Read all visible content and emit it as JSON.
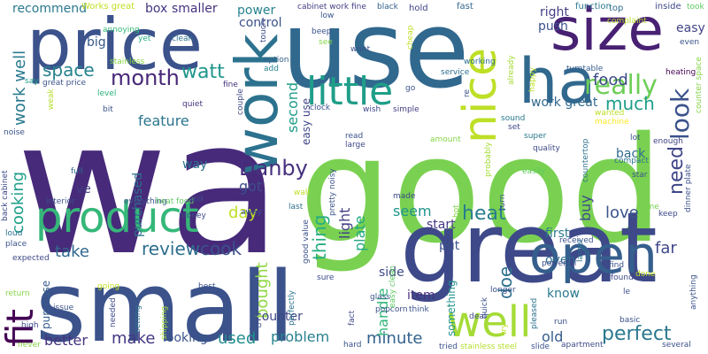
{
  "words": [
    {
      "text": "wa",
      "color": "#472a7a"
    },
    {
      "text": "good",
      "color": "#7ad151"
    },
    {
      "text": "use",
      "color": "#31688e"
    },
    {
      "text": "great",
      "color": "#3e4989"
    },
    {
      "text": "small",
      "color": "#3b528b"
    },
    {
      "text": "price",
      "color": "#3b528b"
    },
    {
      "text": "work",
      "color": "#2c728e"
    },
    {
      "text": "size",
      "color": "#482173"
    },
    {
      "text": "ha",
      "color": "#31688e"
    },
    {
      "text": "nice",
      "color": "#bddf26"
    },
    {
      "text": "product",
      "color": "#35b779"
    },
    {
      "text": "open",
      "color": "#355f8d"
    },
    {
      "text": "little",
      "color": "#1f9e89"
    },
    {
      "text": "fit",
      "color": "#440154"
    },
    {
      "text": "well",
      "color": "#a5db36"
    },
    {
      "text": "month",
      "color": "#482878"
    },
    {
      "text": "watt",
      "color": "#1f968b"
    },
    {
      "text": "really",
      "color": "#6ece58"
    },
    {
      "text": "space",
      "color": "#26828e"
    },
    {
      "text": "look",
      "color": "#3b528b"
    },
    {
      "text": "food",
      "color": "#3e4a89"
    },
    {
      "text": "work well",
      "color": "#29798e"
    },
    {
      "text": "much",
      "color": "#1f9e89"
    },
    {
      "text": "Danby",
      "color": "#46307e"
    },
    {
      "text": "heat",
      "color": "#287d8e"
    },
    {
      "text": "review",
      "color": "#2e6f8e"
    },
    {
      "text": "cook",
      "color": "#3b518b"
    },
    {
      "text": "perfect",
      "color": "#2a788e"
    },
    {
      "text": "need",
      "color": "#3f4788"
    },
    {
      "text": "take",
      "color": "#31688e"
    },
    {
      "text": "make",
      "color": "#443983"
    },
    {
      "text": "used",
      "color": "#228d8d"
    },
    {
      "text": "thing",
      "color": "#26ad81"
    },
    {
      "text": "bought",
      "color": "#8fd744"
    },
    {
      "text": "love",
      "color": "#39558c"
    },
    {
      "text": "seem",
      "color": "#1f958b"
    },
    {
      "text": "doe",
      "color": "#2d718e"
    },
    {
      "text": "feature",
      "color": "#2b758e"
    },
    {
      "text": "day",
      "color": "#bddf26"
    },
    {
      "text": "cooking",
      "color": "#1fa088"
    },
    {
      "text": "minute",
      "color": "#33638d"
    },
    {
      "text": "buy",
      "color": "#3e4a89"
    },
    {
      "text": "second",
      "color": "#1e9c89"
    },
    {
      "text": "problem",
      "color": "#27808e"
    },
    {
      "text": "better",
      "color": "#46327e"
    },
    {
      "text": "far",
      "color": "#3f4889"
    },
    {
      "text": "light",
      "color": "#424186"
    },
    {
      "text": "got",
      "color": "#3d4e8a"
    },
    {
      "text": "plate",
      "color": "#22a884"
    },
    {
      "text": "work great",
      "color": "#31688e"
    },
    {
      "text": "old",
      "color": "#365c8d"
    },
    {
      "text": "handle",
      "color": "#32b67a"
    },
    {
      "text": "power",
      "color": "#26828e"
    },
    {
      "text": "back",
      "color": "#2f6b8e"
    },
    {
      "text": "easy",
      "color": "#414487"
    },
    {
      "text": "counter",
      "color": "#3f4788"
    },
    {
      "text": "looking",
      "color": "#3a538b"
    },
    {
      "text": "first",
      "color": "#297a8e"
    },
    {
      "text": "put",
      "color": "#3b528b"
    },
    {
      "text": "oven",
      "color": "#2e6d8e"
    },
    {
      "text": "start",
      "color": "#453882"
    },
    {
      "text": "purchased",
      "color": "#2d708e"
    },
    {
      "text": "smaller",
      "color": "#46327e"
    },
    {
      "text": "box",
      "color": "#453581"
    },
    {
      "text": "recommend",
      "color": "#2a788e"
    },
    {
      "text": "way",
      "color": "#2c728e"
    },
    {
      "text": "big",
      "color": "#38588c"
    },
    {
      "text": "right",
      "color": "#433e85"
    },
    {
      "text": "push",
      "color": "#3b528b"
    },
    {
      "text": "control",
      "color": "#3b528b"
    },
    {
      "text": "know",
      "color": "#2a788e"
    },
    {
      "text": "side",
      "color": "#3e4a89"
    },
    {
      "text": "item",
      "color": "#46307e"
    },
    {
      "text": "ve",
      "color": "#433e85"
    },
    {
      "text": "easy use",
      "color": "#3f4788"
    },
    {
      "text": "purchase",
      "color": "#365c8d"
    },
    {
      "text": "something",
      "color": "#21918c"
    },
    {
      "text": "top",
      "color": "#2f6c8e"
    },
    {
      "text": "Works great",
      "color": "#c2df23"
    },
    {
      "text": "hold",
      "color": "#404588"
    },
    {
      "text": "fast",
      "color": "#31678e"
    },
    {
      "text": "function",
      "color": "#2a788e"
    },
    {
      "text": "inside",
      "color": "#3e4989"
    },
    {
      "text": "took",
      "color": "#5ec962"
    },
    {
      "text": "cabinet work fine",
      "color": "#433e85"
    },
    {
      "text": "black",
      "color": "#34618d"
    },
    {
      "text": "low",
      "color": "#39568c"
    },
    {
      "text": "complaint",
      "color": "#b5de2b"
    },
    {
      "text": "even",
      "color": "#3b528b"
    },
    {
      "text": "turntable",
      "color": "#365c8d"
    },
    {
      "text": "heating",
      "color": "#440154"
    },
    {
      "text": "service",
      "color": "#2e6e8e"
    },
    {
      "text": "working",
      "color": "#2d718e"
    },
    {
      "text": "annoying",
      "color": "#35b779"
    },
    {
      "text": "yet",
      "color": "#26ad81"
    },
    {
      "text": "clean",
      "color": "#2c728e"
    },
    {
      "text": "stainless",
      "color": "#86d549"
    },
    {
      "text": "say",
      "color": "#1f9e89"
    },
    {
      "text": "great price",
      "color": "#3b528b"
    },
    {
      "text": "level",
      "color": "#2db27d"
    },
    {
      "text": "bit",
      "color": "#3b528b"
    },
    {
      "text": "quiet",
      "color": "#46327e"
    },
    {
      "text": "fine",
      "color": "#46307e"
    },
    {
      "text": "option",
      "color": "#35608d"
    },
    {
      "text": "add",
      "color": "#26828e"
    },
    {
      "text": "couple",
      "color": "#3e4a89"
    },
    {
      "text": "clock",
      "color": "#3b528b"
    },
    {
      "text": "wish",
      "color": "#3e4989"
    },
    {
      "text": "simple",
      "color": "#433e85"
    },
    {
      "text": "go",
      "color": "#3b528b"
    },
    {
      "text": "sound",
      "color": "#2a788e"
    },
    {
      "text": "set",
      "color": "#3f4788"
    },
    {
      "text": "super",
      "color": "#2a788e"
    },
    {
      "text": "quality",
      "color": "#3e4a89"
    },
    {
      "text": "countertop",
      "color": "#2c728e"
    },
    {
      "text": "lot",
      "color": "#3b528b"
    },
    {
      "text": "enough",
      "color": "#414487"
    },
    {
      "text": "machine",
      "color": "#fde725"
    },
    {
      "text": "wanted",
      "color": "#bddf26"
    },
    {
      "text": "compact",
      "color": "#2c728e"
    },
    {
      "text": "star",
      "color": "#3b528b"
    },
    {
      "text": "dinner plate",
      "color": "#3b528b"
    },
    {
      "text": "keep",
      "color": "#3e4989"
    },
    {
      "text": "noise",
      "color": "#3b528b"
    },
    {
      "text": "full",
      "color": "#31688e"
    },
    {
      "text": "back cabinet",
      "color": "#3e4a89"
    },
    {
      "text": "interior",
      "color": "#3b528b"
    },
    {
      "text": "everything",
      "color": "#3b528b"
    },
    {
      "text": "heat food",
      "color": "#5ec962"
    },
    {
      "text": "still",
      "color": "#3b528b"
    },
    {
      "text": "money",
      "color": "#3e4a89"
    },
    {
      "text": "away",
      "color": "#3b528b"
    },
    {
      "text": "wall",
      "color": "#bddf26"
    },
    {
      "text": "last",
      "color": "#2c728e"
    },
    {
      "text": "made",
      "color": "#3e4a89"
    },
    {
      "text": "pretty noisy",
      "color": "#3b528b"
    },
    {
      "text": "amount",
      "color": "#86d549"
    },
    {
      "text": "probably",
      "color": "#a5db36"
    },
    {
      "text": "easily",
      "color": "#5ec962"
    },
    {
      "text": "come",
      "color": "#7ad151"
    },
    {
      "text": "loud",
      "color": "#2c728e"
    },
    {
      "text": "place",
      "color": "#3b528b"
    },
    {
      "text": "expected",
      "color": "#3e4989"
    },
    {
      "text": "return",
      "color": "#86d549"
    },
    {
      "text": "going",
      "color": "#c2df23"
    },
    {
      "text": "best",
      "color": "#3b528b"
    },
    {
      "text": "issue",
      "color": "#3b528b"
    },
    {
      "text": "needed",
      "color": "#3e4a89"
    },
    {
      "text": "setting",
      "color": "#2c728e"
    },
    {
      "text": "shipping",
      "color": "#a5db36"
    },
    {
      "text": "high",
      "color": "#3e4989"
    },
    {
      "text": "never",
      "color": "#86d549"
    },
    {
      "text": "good value",
      "color": "#3b528b"
    },
    {
      "text": "job",
      "color": "#3b528b"
    },
    {
      "text": "perfectly",
      "color": "#2c728e"
    },
    {
      "text": "sure",
      "color": "#3e4a89"
    },
    {
      "text": "glass",
      "color": "#3b528b"
    },
    {
      "text": "popcorn",
      "color": "#3b528b"
    },
    {
      "text": "easy clean",
      "color": "#5ec962"
    },
    {
      "text": "fact",
      "color": "#3e4989"
    },
    {
      "text": "tried",
      "color": "#3b528b"
    },
    {
      "text": "stainless steel",
      "color": "#b5de2b"
    },
    {
      "text": "slide",
      "color": "#3b528b"
    },
    {
      "text": "deal",
      "color": "#3e4a89"
    },
    {
      "text": "quick",
      "color": "#3b528b"
    },
    {
      "text": "longer",
      "color": "#3b528b"
    },
    {
      "text": "try",
      "color": "#bddf26"
    },
    {
      "text": "pleased",
      "color": "#2c728e"
    },
    {
      "text": "received",
      "color": "#3b528b"
    },
    {
      "text": "powerful",
      "color": "#3e4a89"
    },
    {
      "text": "run",
      "color": "#3b528b"
    },
    {
      "text": "larger",
      "color": "#2c728e"
    },
    {
      "text": "find",
      "color": "#3b528b"
    },
    {
      "text": "found",
      "color": "#3e4989"
    },
    {
      "text": "le",
      "color": "#3b528b"
    },
    {
      "text": "done",
      "color": "#c2df23"
    },
    {
      "text": "basic",
      "color": "#3b528b"
    },
    {
      "text": "apartment",
      "color": "#3e4a89"
    },
    {
      "text": "hard",
      "color": "#3b528b"
    },
    {
      "text": "several",
      "color": "#3b528b"
    },
    {
      "text": "anything",
      "color": "#3b528b"
    },
    {
      "text": "think",
      "color": "#3b528b"
    },
    {
      "text": "cheap",
      "color": "#c2df23"
    },
    {
      "text": "beep",
      "color": "#3b528b"
    },
    {
      "text": "see",
      "color": "#86d549"
    },
    {
      "text": "touch",
      "color": "#3e4a89"
    },
    {
      "text": "want",
      "color": "#3b528b"
    },
    {
      "text": "already",
      "color": "#a5db36"
    },
    {
      "text": "happy",
      "color": "#bddf26"
    },
    {
      "text": "read",
      "color": "#3b528b"
    },
    {
      "text": "large",
      "color": "#3e4989"
    },
    {
      "text": "hot",
      "color": "#86d549"
    },
    {
      "text": "turn",
      "color": "#3b528b"
    },
    {
      "text": "re",
      "color": "#3b528b"
    },
    {
      "text": "counter space",
      "color": "#86d549"
    },
    {
      "text": "weak",
      "color": "#b5de2b"
    }
  ]
}
